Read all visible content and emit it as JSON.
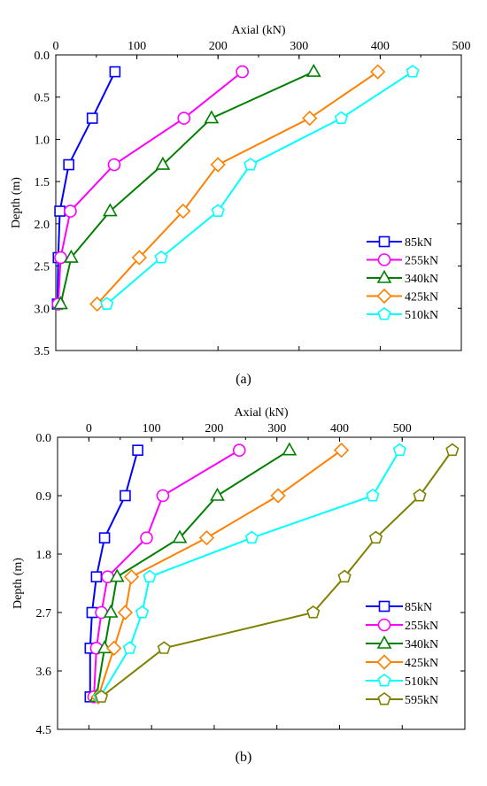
{
  "chart_data": [
    {
      "panel_label": "(a)",
      "type": "line",
      "xlabel": "Axial (kN)",
      "ylabel": "Depth (m)",
      "xlim": [
        0,
        500
      ],
      "ylim": [
        0.0,
        3.5
      ],
      "x_axis_position": "top",
      "y_inverted": true,
      "xticks": [
        "0",
        "100",
        "200",
        "300",
        "400",
        "500"
      ],
      "yticks": [
        "0.0",
        "0.5",
        "1.0",
        "1.5",
        "2.0",
        "2.5",
        "3.0",
        "3.5"
      ],
      "legend_position": "bottom-right",
      "grid": false,
      "series": [
        {
          "name": "85kN",
          "color": "#0000ff",
          "marker": "square",
          "axial": [
            73,
            45,
            16,
            5,
            3,
            2
          ],
          "depth": [
            0.2,
            0.75,
            1.3,
            1.85,
            2.4,
            2.95
          ]
        },
        {
          "name": "255kN",
          "color": "#ff00ff",
          "marker": "circle",
          "axial": [
            230,
            158,
            72,
            18,
            6,
            3
          ],
          "depth": [
            0.2,
            0.75,
            1.3,
            1.85,
            2.4,
            2.95
          ]
        },
        {
          "name": "340kN",
          "color": "#008000",
          "marker": "triangle",
          "axial": [
            318,
            192,
            132,
            67,
            19,
            6
          ],
          "depth": [
            0.2,
            0.75,
            1.3,
            1.85,
            2.4,
            2.95
          ]
        },
        {
          "name": "425kN",
          "color": "#ff8000",
          "marker": "diamond",
          "axial": [
            397,
            313,
            200,
            157,
            103,
            51
          ],
          "depth": [
            0.2,
            0.75,
            1.3,
            1.85,
            2.4,
            2.95
          ]
        },
        {
          "name": "510kN",
          "color": "#00ffff",
          "marker": "pentagon",
          "axial": [
            440,
            352,
            240,
            200,
            130,
            63
          ],
          "depth": [
            0.2,
            0.75,
            1.3,
            1.85,
            2.4,
            2.95
          ]
        }
      ]
    },
    {
      "panel_label": "(b)",
      "type": "line",
      "xlabel": "Axial (kN)",
      "ylabel": "Depth (m)",
      "xlim": [
        -50,
        600
      ],
      "ylim": [
        0.0,
        4.5
      ],
      "x_axis_position": "top",
      "y_inverted": true,
      "xticks": [
        "0",
        "100",
        "200",
        "300",
        "400",
        "500"
      ],
      "yticks": [
        "0.0",
        "0.9",
        "1.8",
        "2.7",
        "3.6",
        "4.5"
      ],
      "legend_position": "bottom-right",
      "grid": false,
      "series": [
        {
          "name": "85kN",
          "color": "#0000ff",
          "marker": "square",
          "axial": [
            78,
            58,
            25,
            12,
            5,
            2,
            2
          ],
          "depth": [
            0.2,
            0.9,
            1.55,
            2.15,
            2.7,
            3.25,
            4.0
          ]
        },
        {
          "name": "255kN",
          "color": "#ff00ff",
          "marker": "circle",
          "axial": [
            240,
            118,
            92,
            30,
            20,
            12,
            8
          ],
          "depth": [
            0.2,
            0.9,
            1.55,
            2.15,
            2.7,
            3.25,
            4.0
          ]
        },
        {
          "name": "340kN",
          "color": "#008000",
          "marker": "triangle",
          "axial": [
            320,
            205,
            145,
            45,
            35,
            25,
            12
          ],
          "depth": [
            0.2,
            0.9,
            1.55,
            2.15,
            2.7,
            3.25,
            4.0
          ]
        },
        {
          "name": "425kN",
          "color": "#ff8000",
          "marker": "diamond",
          "axial": [
            403,
            302,
            188,
            68,
            58,
            40,
            15
          ],
          "depth": [
            0.2,
            0.9,
            1.55,
            2.15,
            2.7,
            3.25,
            4.0
          ]
        },
        {
          "name": "510kN",
          "color": "#00ffff",
          "marker": "pentagon",
          "axial": [
            496,
            453,
            260,
            97,
            85,
            65,
            18
          ],
          "depth": [
            0.2,
            0.9,
            1.55,
            2.15,
            2.7,
            3.25,
            4.0
          ]
        },
        {
          "name": "595kN",
          "color": "#808000",
          "marker": "pentagon",
          "axial": [
            580,
            528,
            458,
            408,
            358,
            120,
            20
          ],
          "depth": [
            0.2,
            0.9,
            1.55,
            2.15,
            2.7,
            3.25,
            4.0
          ]
        }
      ]
    }
  ]
}
